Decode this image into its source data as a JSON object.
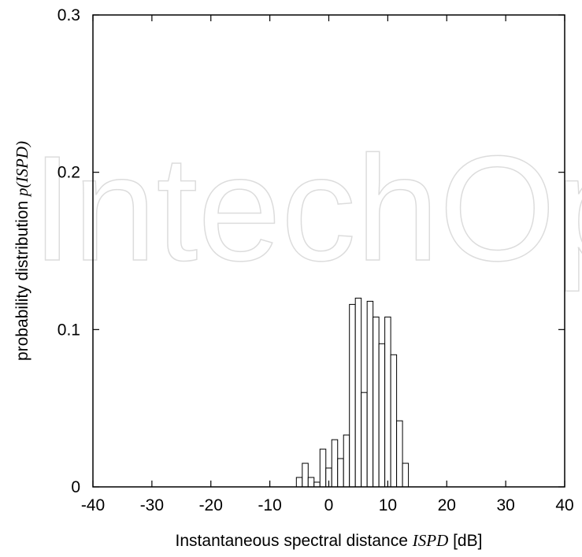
{
  "watermark": "IntechOpen",
  "chart_data": {
    "type": "bar",
    "xlabel": {
      "pre": "Instantaneous spectral distance ",
      "math": "ISPD",
      "post": " [dB]"
    },
    "ylabel": {
      "pre": "probability distribution ",
      "math": "p(ISPD)",
      "post": ""
    },
    "xlim": [
      -40,
      40
    ],
    "ylim": [
      0,
      0.3
    ],
    "xticks": [
      -40,
      -30,
      -20,
      -10,
      0,
      10,
      20,
      30,
      40
    ],
    "xtick_labels": [
      "-40",
      "-30",
      "-20",
      "-10",
      "0",
      "10",
      "20",
      "30",
      "40"
    ],
    "yticks": [
      0,
      0.1,
      0.2,
      0.3
    ],
    "ytick_labels": [
      "0",
      "0.1",
      "0.2",
      "0.3"
    ],
    "grid": false,
    "bin_width": 1,
    "bins": [
      {
        "x": -5,
        "y": 0.006
      },
      {
        "x": -4,
        "y": 0.015
      },
      {
        "x": -3,
        "y": 0.006
      },
      {
        "x": -2,
        "y": 0.003
      },
      {
        "x": -1,
        "y": 0.024
      },
      {
        "x": 0,
        "y": 0.012
      },
      {
        "x": 1,
        "y": 0.03
      },
      {
        "x": 2,
        "y": 0.018
      },
      {
        "x": 3,
        "y": 0.033
      },
      {
        "x": 4,
        "y": 0.116
      },
      {
        "x": 5,
        "y": 0.12
      },
      {
        "x": 6,
        "y": 0.06
      },
      {
        "x": 7,
        "y": 0.118
      },
      {
        "x": 8,
        "y": 0.108
      },
      {
        "x": 9,
        "y": 0.091
      },
      {
        "x": 10,
        "y": 0.108
      },
      {
        "x": 11,
        "y": 0.084
      },
      {
        "x": 12,
        "y": 0.042
      },
      {
        "x": 13,
        "y": 0.015
      }
    ]
  }
}
